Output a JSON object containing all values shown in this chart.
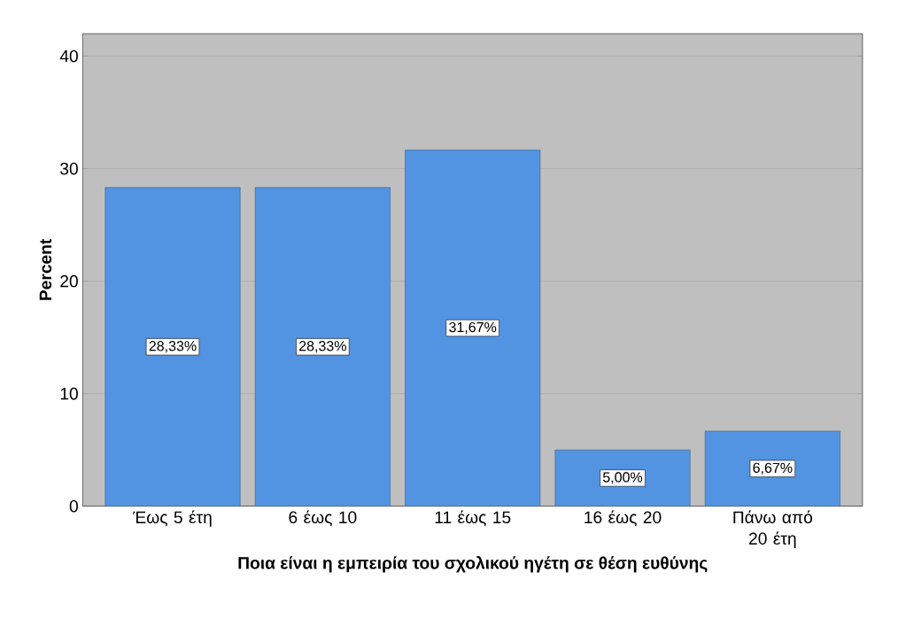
{
  "chart_data": {
    "type": "bar",
    "xlabel": "Ποια είναι η εμπειρία του σχολικού ηγέτη σε θέση ευθύνης",
    "ylabel": "Percent",
    "categories": [
      "Έως 5 έτη",
      "6 έως 10",
      "11 έως 15",
      "16 έως 20",
      "Πάνω από 20 έτη"
    ],
    "values": [
      28.33,
      28.33,
      31.67,
      5.0,
      6.67
    ],
    "value_labels": [
      "28,33%",
      "28,33%",
      "31,67%",
      "5,00%",
      "6,67%"
    ],
    "color": "#5294e2",
    "ylim": [
      0,
      42
    ],
    "yticks": [
      0,
      10,
      20,
      30,
      40
    ],
    "grid": "y"
  }
}
